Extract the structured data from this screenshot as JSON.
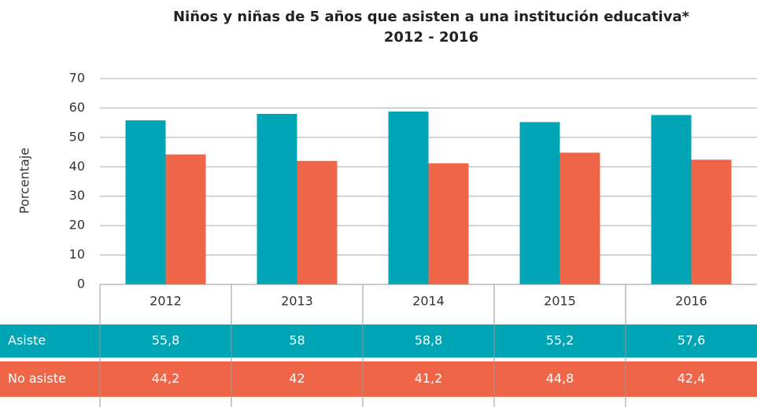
{
  "chart_data": {
    "type": "bar",
    "title": "Niños y niñas de 5 años que asisten a una institución educativa*",
    "subtitle": "2012 - 2016",
    "y_label": "Porcentaje",
    "categories": [
      "2012",
      "2013",
      "2014",
      "2015",
      "2016"
    ],
    "series": [
      {
        "name": "Asiste",
        "color": "#00a5b5",
        "values": [
          55.8,
          58,
          58.8,
          55.2,
          57.6
        ],
        "value_labels": [
          "55,8",
          "58",
          "58,8",
          "55,2",
          "57,6"
        ]
      },
      {
        "name": "No asiste",
        "color": "#ef6548",
        "values": [
          44.2,
          42,
          41.2,
          44.8,
          42.4
        ],
        "value_labels": [
          "44,2",
          "42",
          "41,2",
          "44,8",
          "42,4"
        ]
      }
    ],
    "ylim": [
      0,
      70
    ],
    "yticks": [
      0,
      10,
      20,
      30,
      40,
      50,
      60,
      70
    ],
    "grid": true
  }
}
